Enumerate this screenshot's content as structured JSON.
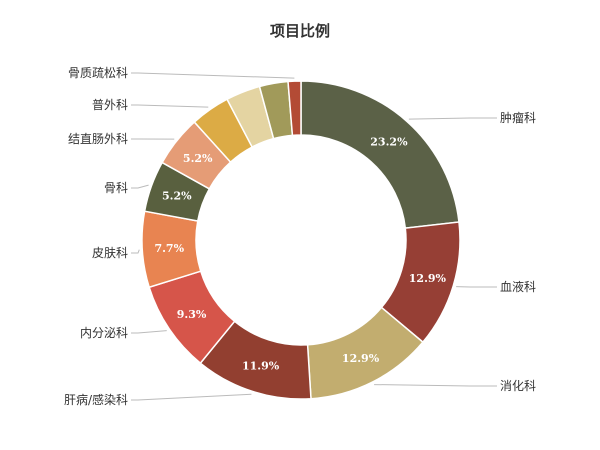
{
  "chart_data": {
    "type": "pie",
    "variant": "donut",
    "title": "项目比例",
    "categories": [
      "肿瘤科",
      "血液科",
      "消化科",
      "肝病/感染科",
      "内分泌科",
      "皮肤科",
      "骨科",
      "结直肠外科",
      "普外科",
      "",
      "",
      "骨质疏松科"
    ],
    "values": [
      23.2,
      12.9,
      12.9,
      11.9,
      9.3,
      7.7,
      5.2,
      5.2,
      4.0,
      3.5,
      2.9,
      1.3
    ],
    "value_labels": [
      "23.2%",
      "12.9%",
      "12.9%",
      "11.9%",
      "9.3%",
      "7.7%",
      "5.2%",
      "5.2%",
      "",
      "",
      "",
      ""
    ],
    "colors": [
      "#5b6147",
      "#963f35",
      "#c2ad6f",
      "#923f30",
      "#d6554a",
      "#e88451",
      "#59603f",
      "#e59c76",
      "#dcab45",
      "#e4d4a2",
      "#a19a5a",
      "#b34b35"
    ],
    "start_angle": 0,
    "direction": "clockwise"
  }
}
